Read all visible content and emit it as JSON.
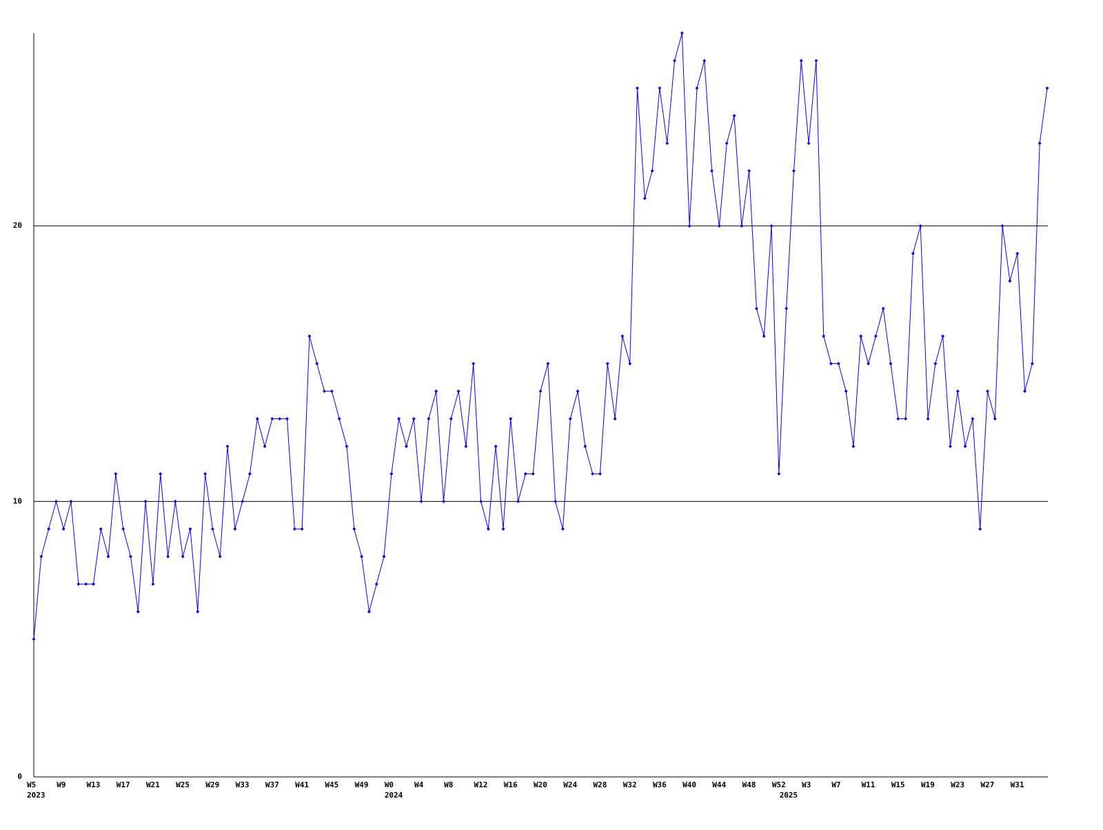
{
  "chart_data": {
    "type": "line",
    "categories": [
      "W5",
      null,
      null,
      null,
      "W9",
      null,
      null,
      null,
      "W13",
      null,
      null,
      null,
      "W17",
      null,
      null,
      null,
      "W21",
      null,
      null,
      null,
      "W25",
      null,
      null,
      null,
      "W29",
      null,
      null,
      null,
      "W33",
      null,
      null,
      null,
      "W37",
      null,
      null,
      null,
      "W41",
      null,
      null,
      null,
      "W45",
      null,
      null,
      null,
      "W49",
      null,
      null,
      null,
      "W0",
      null,
      null,
      null,
      "W4",
      null,
      null,
      null,
      "W8",
      null,
      null,
      null,
      "W12",
      null,
      null,
      null,
      "W16",
      null,
      null,
      null,
      "W20",
      null,
      null,
      null,
      "W24",
      null,
      null,
      null,
      "W28",
      null,
      null,
      null,
      "W32",
      null,
      null,
      null,
      "W36",
      null,
      null,
      null,
      "W40",
      null,
      null,
      null,
      "W44",
      null,
      null,
      null,
      "W48",
      null,
      null,
      null,
      "W52",
      null,
      null,
      null,
      "W3",
      null,
      null,
      null,
      "W7",
      null,
      null,
      null,
      "W11",
      null,
      null,
      null,
      "W15",
      null,
      null,
      null,
      "W19",
      null,
      null,
      null,
      "W23",
      null,
      null,
      null,
      "W27",
      null,
      null,
      null,
      "W31",
      null,
      null,
      null,
      null
    ],
    "year_labels": [
      "2023",
      null,
      null,
      null,
      null,
      null,
      null,
      null,
      null,
      null,
      null,
      null,
      null,
      null,
      null,
      null,
      null,
      null,
      null,
      null,
      null,
      null,
      null,
      null,
      null,
      null,
      null,
      null,
      null,
      null,
      null,
      null,
      null,
      null,
      null,
      null,
      null,
      null,
      null,
      null,
      null,
      null,
      null,
      null,
      null,
      null,
      null,
      null,
      "2024",
      null,
      null,
      null,
      null,
      null,
      null,
      null,
      null,
      null,
      null,
      null,
      null,
      null,
      null,
      null,
      null,
      null,
      null,
      null,
      null,
      null,
      null,
      null,
      null,
      null,
      null,
      null,
      null,
      null,
      null,
      null,
      null,
      null,
      null,
      null,
      null,
      null,
      null,
      null,
      null,
      null,
      null,
      null,
      null,
      null,
      null,
      null,
      null,
      null,
      null,
      null,
      null,
      "2025",
      null,
      null,
      null,
      null,
      null,
      null,
      null,
      null,
      null,
      null,
      null,
      null,
      null,
      null,
      null,
      null,
      null,
      null,
      null,
      null,
      null,
      null,
      null,
      null,
      null,
      null,
      null,
      null,
      null,
      null,
      null,
      null,
      null,
      null,
      null
    ],
    "series": [
      {
        "color": "#0000ff",
        "values": [
          5,
          8,
          9,
          10,
          9,
          10,
          7,
          7,
          7,
          9,
          8,
          11,
          9,
          8,
          6,
          10,
          7,
          11,
          8,
          10,
          8,
          9,
          6,
          11,
          9,
          8,
          12,
          9,
          10,
          11,
          13,
          12,
          13,
          13,
          13,
          9,
          9,
          16,
          15,
          14,
          14,
          13,
          12,
          9,
          8,
          6,
          7,
          8,
          11,
          13,
          12,
          13,
          10,
          13,
          14,
          10,
          13,
          14,
          12,
          15,
          10,
          9,
          12,
          9,
          13,
          10,
          11,
          11,
          14,
          15,
          10,
          9,
          13,
          14,
          12,
          11,
          11,
          15,
          13,
          16,
          15,
          25,
          21,
          22,
          25,
          23,
          26,
          27,
          20,
          25,
          26,
          22,
          20,
          23,
          24,
          20,
          22,
          17,
          16,
          20,
          11,
          17,
          22,
          26,
          23,
          26,
          16,
          15,
          15,
          14,
          12,
          16,
          15,
          16,
          17,
          15,
          13,
          13,
          19,
          20,
          13,
          15,
          16,
          12,
          14,
          12,
          13,
          9,
          14,
          13,
          20,
          18,
          19,
          14,
          15,
          23,
          25
        ]
      }
    ],
    "ylim": [
      0,
      27
    ],
    "yticks": [
      0,
      10,
      20
    ],
    "grid": true
  }
}
